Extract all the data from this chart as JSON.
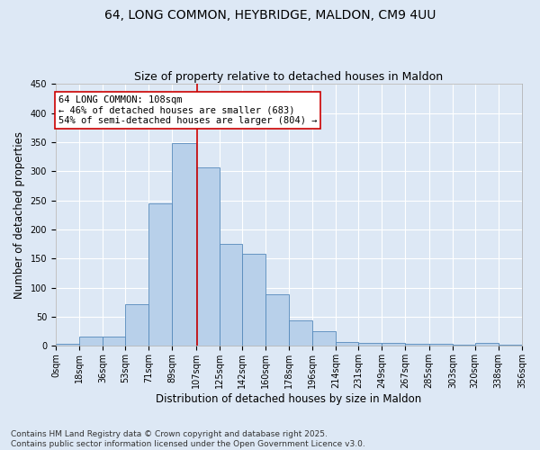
{
  "title_line1": "64, LONG COMMON, HEYBRIDGE, MALDON, CM9 4UU",
  "title_line2": "Size of property relative to detached houses in Maldon",
  "xlabel": "Distribution of detached houses by size in Maldon",
  "ylabel": "Number of detached properties",
  "bar_edges": [
    0,
    18,
    36,
    53,
    71,
    89,
    107,
    125,
    142,
    160,
    178,
    196,
    214,
    231,
    249,
    267,
    285,
    303,
    320,
    338,
    356
  ],
  "bar_heights": [
    3,
    16,
    16,
    72,
    245,
    348,
    306,
    175,
    158,
    88,
    44,
    25,
    7,
    5,
    5,
    4,
    4,
    2,
    5,
    2
  ],
  "bar_color": "#b8d0ea",
  "bar_edge_color": "#5589bb",
  "property_value": 108,
  "vline_color": "#cc0000",
  "annotation_text": "64 LONG COMMON: 108sqm\n← 46% of detached houses are smaller (683)\n54% of semi-detached houses are larger (804) →",
  "annotation_box_color": "#ffffff",
  "annotation_box_edge_color": "#cc0000",
  "annotation_fontsize": 7.5,
  "ylim": [
    0,
    450
  ],
  "yticks": [
    0,
    50,
    100,
    150,
    200,
    250,
    300,
    350,
    400,
    450
  ],
  "background_color": "#dde8f5",
  "grid_color": "#ffffff",
  "footnote": "Contains HM Land Registry data © Crown copyright and database right 2025.\nContains public sector information licensed under the Open Government Licence v3.0.",
  "title_fontsize": 10,
  "subtitle_fontsize": 9,
  "axis_label_fontsize": 8.5,
  "tick_fontsize": 7,
  "footnote_fontsize": 6.5
}
